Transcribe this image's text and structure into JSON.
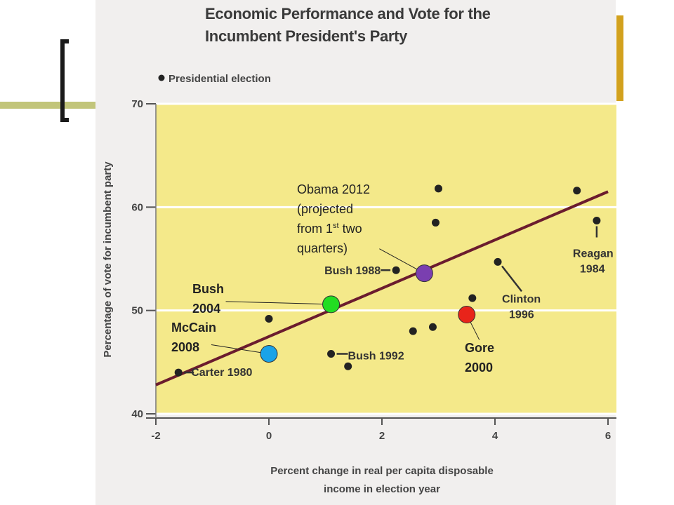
{
  "chart_data": {
    "type": "scatter",
    "title": "Economic Performance and Vote for the Incumbent President's Party",
    "legend": {
      "label": "Presidential election",
      "position": "top-left"
    },
    "xlabel": "Percent change in real per capita disposable income in election year",
    "ylabel": "Percentage of vote for incumbent party",
    "xlim": [
      -2,
      6
    ],
    "ylim": [
      40,
      70
    ],
    "x_ticks": [
      -2,
      0,
      2,
      4,
      6
    ],
    "y_ticks": [
      40,
      50,
      60,
      70
    ],
    "grid": "horizontal",
    "background_color": "#f4e98a",
    "point_color": "#222222",
    "fit_line": {
      "color": "#6b1c2e",
      "x": [
        -2,
        6
      ],
      "y": [
        42.8,
        61.5
      ]
    },
    "points": [
      {
        "x": -1.6,
        "y": 44.0,
        "label": "Carter 1980"
      },
      {
        "x": 0.0,
        "y": 49.2,
        "label": ""
      },
      {
        "x": 1.1,
        "y": 45.8,
        "label": "Bush 1992"
      },
      {
        "x": 1.4,
        "y": 44.6,
        "label": ""
      },
      {
        "x": 2.25,
        "y": 53.9,
        "label": "Bush 1988"
      },
      {
        "x": 2.55,
        "y": 48.0,
        "label": ""
      },
      {
        "x": 2.9,
        "y": 48.4,
        "label": ""
      },
      {
        "x": 3.0,
        "y": 61.8,
        "label": ""
      },
      {
        "x": 2.95,
        "y": 58.5,
        "label": ""
      },
      {
        "x": 3.6,
        "y": 51.2,
        "label": ""
      },
      {
        "x": 4.05,
        "y": 54.7,
        "label": "Clinton 1996"
      },
      {
        "x": 5.45,
        "y": 61.6,
        "label": ""
      },
      {
        "x": 5.8,
        "y": 58.7,
        "label": "Reagan 1984"
      }
    ],
    "highlighted": [
      {
        "x": 1.1,
        "y": 50.6,
        "color": "#22dd22",
        "label": "Bush 2004"
      },
      {
        "x": 0.0,
        "y": 45.8,
        "color": "#1aa3e8",
        "label": "McCain 2008"
      },
      {
        "x": 2.75,
        "y": 53.6,
        "color": "#7a3fb0",
        "label": "Obama 2012 (projected from 1st two quarters)"
      },
      {
        "x": 3.5,
        "y": 49.6,
        "color": "#e8241a",
        "label": "Gore 2000"
      }
    ]
  },
  "text": {
    "bush04_line1": "Bush",
    "bush04_line2": "2004",
    "mccain_line1": "McCain",
    "mccain_line2": "2008",
    "gore_line1": "Gore",
    "gore_line2": "2000",
    "obama_line1": "Obama 2012",
    "obama_line2": "(projected",
    "obama_line3_pre": "from 1",
    "obama_line3_sup": "st",
    "obama_line3_post": " two",
    "obama_line4": "quarters)"
  },
  "theme": {
    "olive": "#c2c57a",
    "gold": "#d2a11d",
    "bracket": "#1a1a1a"
  }
}
